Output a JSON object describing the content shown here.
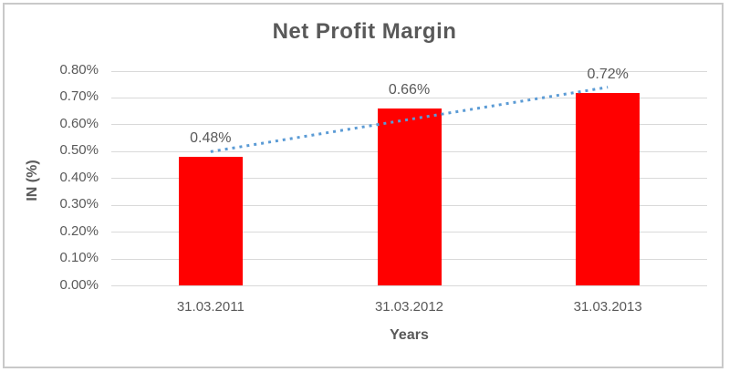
{
  "chart_data": {
    "type": "bar",
    "title": "Net Profit Margin",
    "xlabel": "Years",
    "ylabel": "IN (%)",
    "categories": [
      "31.03.2011",
      "31.03.2012",
      "31.03.2013"
    ],
    "series": [
      {
        "name": "Net Profit Margin",
        "values": [
          0.48,
          0.66,
          0.72
        ]
      }
    ],
    "data_labels": [
      "0.48%",
      "0.66%",
      "0.72%"
    ],
    "ylim": [
      0,
      0.8
    ],
    "ytick_step": 0.1,
    "ytick_labels": [
      "0.00%",
      "0.10%",
      "0.20%",
      "0.30%",
      "0.40%",
      "0.50%",
      "0.60%",
      "0.70%",
      "0.80%"
    ],
    "grid": true,
    "legend": "none",
    "bar_color": "#ff0000",
    "text_color": "#595959",
    "gridline_color": "#d9d9d9",
    "frame_color": "#c9c9c9",
    "trendline": {
      "type": "linear",
      "style": "dotted",
      "color": "#5b9bd5",
      "endpoint_values": [
        0.5,
        0.74
      ]
    }
  }
}
